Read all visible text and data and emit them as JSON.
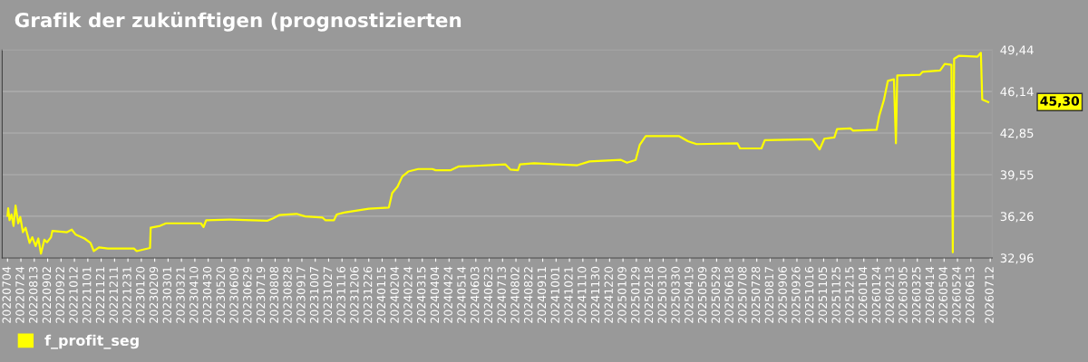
{
  "chart_data": {
    "type": "line",
    "title": "Grafik der zukünftigen (prognostizierten",
    "x": [
      "2022-07-04",
      "2022-07-05",
      "2022-07-07",
      "2022-07-10",
      "2022-07-13",
      "2022-07-16",
      "2022-07-20",
      "2022-07-23",
      "2022-07-27",
      "2022-07-31",
      "2022-08-06",
      "2022-08-10",
      "2022-08-15",
      "2022-08-19",
      "2022-08-23",
      "2022-08-28",
      "2022-09-01",
      "2022-09-07",
      "2022-09-09",
      "2022-10-01",
      "2022-10-08",
      "2022-10-14",
      "2022-10-27",
      "2022-11-05",
      "2022-11-10",
      "2022-11-18",
      "2022-12-01",
      "2023-01-09",
      "2023-01-13",
      "2023-02-02",
      "2023-02-03",
      "2023-02-17",
      "2023-02-26",
      "2023-04-19",
      "2023-04-23",
      "2023-04-27",
      "2023-06-01",
      "2023-07-27",
      "2023-08-05",
      "2023-08-14",
      "2023-09-09",
      "2023-09-22",
      "2023-10-18",
      "2023-10-22",
      "2023-11-04",
      "2023-11-08",
      "2023-11-19",
      "2023-12-26",
      "2024-01-25",
      "2024-01-30",
      "2024-02-07",
      "2024-02-14",
      "2024-02-23",
      "2024-03-09",
      "2024-03-30",
      "2024-04-04",
      "2024-04-26",
      "2024-05-08",
      "2024-06-03",
      "2024-07-17",
      "2024-07-25",
      "2024-08-05",
      "2024-08-08",
      "2024-08-29",
      "2024-11-02",
      "2024-11-20",
      "2025-01-06",
      "2025-01-15",
      "2025-01-28",
      "2025-02-03",
      "2025-02-12",
      "2025-04-03",
      "2025-04-16",
      "2025-04-29",
      "2025-06-29",
      "2025-07-03",
      "2025-08-04",
      "2025-08-09",
      "2025-10-19",
      "2025-10-30",
      "2025-11-06",
      "2025-11-21",
      "2025-11-25",
      "2025-12-15",
      "2025-12-19",
      "2026-01-23",
      "2026-01-27",
      "2026-02-03",
      "2026-02-09",
      "2026-02-18",
      "2026-02-21",
      "2026-02-23",
      "2026-03-29",
      "2026-04-02",
      "2026-04-28",
      "2026-05-05",
      "2026-05-15",
      "2026-05-17",
      "2026-05-19",
      "2026-05-26",
      "2026-06-23",
      "2026-06-28",
      "2026-06-30",
      "2026-07-09"
    ],
    "series": [
      {
        "name": "f_profit_seg",
        "color": "#ffff00",
        "values": [
          36.3,
          36.9,
          35.95,
          36.4,
          35.5,
          37.1,
          35.7,
          36.2,
          35.0,
          35.35,
          34.15,
          34.6,
          33.9,
          34.5,
          33.3,
          34.4,
          34.2,
          34.6,
          35.1,
          35.0,
          35.2,
          34.8,
          34.5,
          34.15,
          33.5,
          33.8,
          33.7,
          33.7,
          33.5,
          33.75,
          35.35,
          35.5,
          35.7,
          35.7,
          35.4,
          35.95,
          36.0,
          35.9,
          36.1,
          36.35,
          36.45,
          36.25,
          36.15,
          35.95,
          35.95,
          36.4,
          36.55,
          36.85,
          36.95,
          38.1,
          38.6,
          39.4,
          39.8,
          40.0,
          40.0,
          39.9,
          39.9,
          40.2,
          40.25,
          40.37,
          39.95,
          39.9,
          40.37,
          40.45,
          40.3,
          40.6,
          40.72,
          40.5,
          40.72,
          41.9,
          42.6,
          42.6,
          42.2,
          41.97,
          42.04,
          41.63,
          41.63,
          42.28,
          42.35,
          41.56,
          42.4,
          42.5,
          43.16,
          43.22,
          43.04,
          43.1,
          44.19,
          45.45,
          46.98,
          47.1,
          42.04,
          47.41,
          47.46,
          47.7,
          47.8,
          48.32,
          48.25,
          33.4,
          48.72,
          48.96,
          48.9,
          49.2,
          45.5,
          45.3
        ]
      }
    ],
    "xlim": [
      "2022-06-26",
      "2026-07-15"
    ],
    "xticks": [
      {
        "value": "2022-07-04",
        "label": "20220704"
      },
      {
        "value": "2022-07-24",
        "label": "20220724"
      },
      {
        "value": "2022-08-13",
        "label": "20220813"
      },
      {
        "value": "2022-09-02",
        "label": "20220902"
      },
      {
        "value": "2022-09-22",
        "label": "20220922"
      },
      {
        "value": "2022-10-12",
        "label": "20221012"
      },
      {
        "value": "2022-11-01",
        "label": "20221101"
      },
      {
        "value": "2022-11-21",
        "label": "20221121"
      },
      {
        "value": "2022-12-11",
        "label": "20221211"
      },
      {
        "value": "2022-12-31",
        "label": "20221231"
      },
      {
        "value": "2023-01-20",
        "label": "20230120"
      },
      {
        "value": "2023-02-09",
        "label": "20230209"
      },
      {
        "value": "2023-03-01",
        "label": "20230301"
      },
      {
        "value": "2023-03-21",
        "label": "20230321"
      },
      {
        "value": "2023-04-10",
        "label": "20230410"
      },
      {
        "value": "2023-04-30",
        "label": "20230430"
      },
      {
        "value": "2023-05-20",
        "label": "20230520"
      },
      {
        "value": "2023-06-09",
        "label": "20230609"
      },
      {
        "value": "2023-06-29",
        "label": "20230629"
      },
      {
        "value": "2023-07-19",
        "label": "20230719"
      },
      {
        "value": "2023-08-08",
        "label": "20230808"
      },
      {
        "value": "2023-08-28",
        "label": "20230828"
      },
      {
        "value": "2023-09-17",
        "label": "20230917"
      },
      {
        "value": "2023-10-07",
        "label": "20231007"
      },
      {
        "value": "2023-10-27",
        "label": "20231027"
      },
      {
        "value": "2023-11-16",
        "label": "20231116"
      },
      {
        "value": "2023-12-06",
        "label": "20231206"
      },
      {
        "value": "2023-12-26",
        "label": "20231226"
      },
      {
        "value": "2024-01-15",
        "label": "20240115"
      },
      {
        "value": "2024-02-04",
        "label": "20240204"
      },
      {
        "value": "2024-02-24",
        "label": "20240224"
      },
      {
        "value": "2024-03-15",
        "label": "20240315"
      },
      {
        "value": "2024-04-04",
        "label": "20240404"
      },
      {
        "value": "2024-04-24",
        "label": "20240424"
      },
      {
        "value": "2024-05-14",
        "label": "20240514"
      },
      {
        "value": "2024-06-03",
        "label": "20240603"
      },
      {
        "value": "2024-06-23",
        "label": "20240623"
      },
      {
        "value": "2024-07-13",
        "label": "20240713"
      },
      {
        "value": "2024-08-02",
        "label": "20240802"
      },
      {
        "value": "2024-08-22",
        "label": "20240822"
      },
      {
        "value": "2024-09-11",
        "label": "20240911"
      },
      {
        "value": "2024-10-01",
        "label": "20241001"
      },
      {
        "value": "2024-10-21",
        "label": "20241021"
      },
      {
        "value": "2024-11-10",
        "label": "20241110"
      },
      {
        "value": "2024-11-30",
        "label": "20241130"
      },
      {
        "value": "2024-12-20",
        "label": "20241220"
      },
      {
        "value": "2025-01-09",
        "label": "20250109"
      },
      {
        "value": "2025-01-29",
        "label": "20250129"
      },
      {
        "value": "2025-02-18",
        "label": "20250218"
      },
      {
        "value": "2025-03-10",
        "label": "20250310"
      },
      {
        "value": "2025-03-30",
        "label": "20250330"
      },
      {
        "value": "2025-04-19",
        "label": "20250419"
      },
      {
        "value": "2025-05-09",
        "label": "20250509"
      },
      {
        "value": "2025-05-29",
        "label": "20250529"
      },
      {
        "value": "2025-06-18",
        "label": "20250618"
      },
      {
        "value": "2025-07-08",
        "label": "20250708"
      },
      {
        "value": "2025-07-28",
        "label": "20250728"
      },
      {
        "value": "2025-08-17",
        "label": "20250817"
      },
      {
        "value": "2025-09-06",
        "label": "20250906"
      },
      {
        "value": "2025-09-26",
        "label": "20250926"
      },
      {
        "value": "2025-10-16",
        "label": "20251016"
      },
      {
        "value": "2025-11-05",
        "label": "20251105"
      },
      {
        "value": "2025-11-25",
        "label": "20251125"
      },
      {
        "value": "2025-12-15",
        "label": "20251215"
      },
      {
        "value": "2026-01-04",
        "label": "20260104"
      },
      {
        "value": "2026-01-24",
        "label": "20260124"
      },
      {
        "value": "2026-02-13",
        "label": "20260213"
      },
      {
        "value": "2026-03-05",
        "label": "20260305"
      },
      {
        "value": "2026-03-25",
        "label": "20260325"
      },
      {
        "value": "2026-04-14",
        "label": "20260414"
      },
      {
        "value": "2026-05-04",
        "label": "20260504"
      },
      {
        "value": "2026-05-24",
        "label": "20260524"
      },
      {
        "value": "2026-06-13",
        "label": "20260613"
      },
      {
        "value": "2026-07-12",
        "label": "20260712"
      }
    ],
    "ylim": [
      32.96,
      49.44
    ],
    "yticks": [
      {
        "value": 32.96,
        "label": "32,96"
      },
      {
        "value": 36.26,
        "label": "36,26"
      },
      {
        "value": 39.55,
        "label": "39,55"
      },
      {
        "value": 42.85,
        "label": "42,85"
      },
      {
        "value": 46.14,
        "label": "46,14"
      },
      {
        "value": 49.44,
        "label": "49,44"
      }
    ],
    "annotations": [
      "45,30"
    ],
    "grid": "y",
    "legend": "bottom left",
    "marker": "none",
    "line_style": "solid"
  }
}
